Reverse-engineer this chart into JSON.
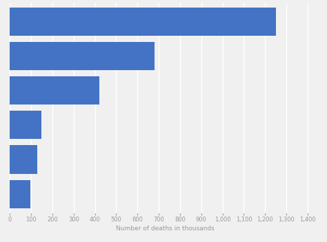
{
  "values": [
    1250,
    680,
    420,
    150,
    130,
    95
  ],
  "bar_color": "#4472c4",
  "background_color": "#f0f0f0",
  "plot_background": "#f0f0f0",
  "xlabel": "Number of deaths in thousands",
  "xlabel_fontsize": 6.5,
  "xlabel_color": "#999999",
  "xticks": [
    0,
    100,
    200,
    300,
    400,
    500,
    600,
    700,
    800,
    900,
    1000,
    1100,
    1200,
    1300,
    1400
  ],
  "xlim": [
    0,
    1460
  ],
  "tick_fontsize": 6,
  "tick_color": "#999999",
  "grid_color": "#ffffff",
  "grid_linewidth": 1.0,
  "bar_height": 0.82,
  "figsize": [
    4.74,
    3.52
  ],
  "dpi": 100
}
